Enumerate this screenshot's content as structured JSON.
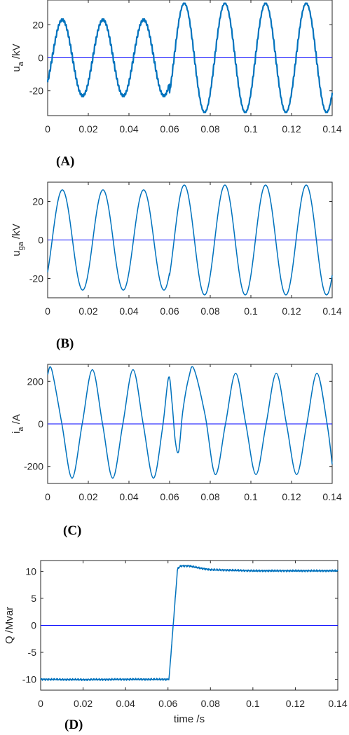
{
  "chart_data": [
    {
      "type": "line",
      "panel_label": "(A)",
      "ylabel": {
        "main": "u",
        "sub": "a",
        "rest": " /kV"
      },
      "xlabel": "",
      "xlim": [
        0,
        0.14
      ],
      "ylim": [
        -35,
        35
      ],
      "xticks": [
        "0",
        "0.02",
        "0.04",
        "0.06",
        "0.08",
        "0.1",
        "0.12",
        "0.14"
      ],
      "xtick_values": [
        0,
        0.02,
        0.04,
        0.06,
        0.08,
        0.1,
        0.12,
        0.14
      ],
      "yticks": [
        "20",
        "0",
        "-20"
      ],
      "ytick_values": [
        20,
        0,
        -20
      ],
      "zero_line": 0,
      "series": [
        {
          "frequency_hz": 50,
          "phase_deg": -40,
          "segments": [
            {
              "from": 0,
              "to": 0.06,
              "amplitude": 23
            },
            {
              "from": 0.06,
              "to": 0.14,
              "amplitude": 33
            }
          ],
          "ripple": true,
          "color": "#0072bd"
        }
      ],
      "zero_line_color": "#0000ff"
    },
    {
      "type": "line",
      "panel_label": "(B)",
      "ylabel": {
        "main": "u",
        "sub": "ga",
        "rest": " /kV"
      },
      "xlabel": "",
      "xlim": [
        0,
        0.14
      ],
      "ylim": [
        -30,
        30
      ],
      "xticks": [
        "0",
        "0.02",
        "0.04",
        "0.06",
        "0.08",
        "0.1",
        "0.12",
        "0.14"
      ],
      "xtick_values": [
        0,
        0.02,
        0.04,
        0.06,
        0.08,
        0.1,
        0.12,
        0.14
      ],
      "yticks": [
        "20",
        "0",
        "-20"
      ],
      "ytick_values": [
        20,
        0,
        -20
      ],
      "zero_line": 0,
      "series": [
        {
          "frequency_hz": 50,
          "phase_deg": -40,
          "segments": [
            {
              "from": 0,
              "to": 0.06,
              "amplitude": 26
            },
            {
              "from": 0.06,
              "to": 0.14,
              "amplitude": 28.5
            }
          ],
          "ripple": false,
          "color": "#0072bd"
        }
      ],
      "zero_line_color": "#0000ff"
    },
    {
      "type": "line",
      "panel_label": "(C)",
      "ylabel": {
        "main": "i",
        "sub": "a",
        "rest": " /A"
      },
      "xlabel": "",
      "xlim": [
        0,
        0.14
      ],
      "ylim": [
        -280,
        280
      ],
      "xticks": [
        "0",
        "0.02",
        "0.04",
        "0.06",
        "0.08",
        "0.1",
        "0.12",
        "0.14"
      ],
      "xtick_values": [
        0,
        0.02,
        0.04,
        0.06,
        0.08,
        0.1,
        0.12,
        0.14
      ],
      "yticks": [
        "200",
        "0",
        "-200"
      ],
      "ytick_values": [
        200,
        0,
        -200
      ],
      "zero_line": 0,
      "series": [
        {
          "points": [
            [
              0,
              232
            ],
            [
              0.002,
              255
            ],
            [
              0.007,
              0
            ],
            [
              0.012,
              -255
            ],
            [
              0.017,
              0
            ],
            [
              0.022,
              255
            ],
            [
              0.027,
              0
            ],
            [
              0.032,
              -255
            ],
            [
              0.037,
              0
            ],
            [
              0.042,
              255
            ],
            [
              0.047,
              0
            ],
            [
              0.052,
              -255
            ],
            [
              0.0565,
              -20
            ],
            [
              0.0595,
              218
            ],
            [
              0.0612,
              100
            ],
            [
              0.0628,
              -80
            ],
            [
              0.0645,
              -128
            ],
            [
              0.0665,
              60
            ],
            [
              0.0695,
              220
            ],
            [
              0.072,
              258
            ],
            [
              0.0775,
              40
            ],
            [
              0.0825,
              -238
            ],
            [
              0.0875,
              0
            ],
            [
              0.0925,
              238
            ],
            [
              0.0975,
              0
            ],
            [
              0.1025,
              -238
            ],
            [
              0.1075,
              0
            ],
            [
              0.1125,
              238
            ],
            [
              0.1175,
              0
            ],
            [
              0.1225,
              -238
            ],
            [
              0.1275,
              0
            ],
            [
              0.1325,
              238
            ],
            [
              0.1375,
              0
            ],
            [
              0.14,
              -190
            ]
          ],
          "color": "#0072bd"
        }
      ],
      "zero_line_color": "#0000ff"
    },
    {
      "type": "line",
      "panel_label": "(D)",
      "ylabel": {
        "main": "Q /Mvar",
        "sub": "",
        "rest": ""
      },
      "xlabel": "time /s",
      "xlim": [
        0,
        0.14
      ],
      "ylim": [
        -12,
        12
      ],
      "xticks": [
        "0",
        "0.02",
        "0.04",
        "0.06",
        "0.08",
        "0.1",
        "0.12",
        "0.14"
      ],
      "xtick_values": [
        0,
        0.02,
        0.04,
        0.06,
        0.08,
        0.1,
        0.12,
        0.14
      ],
      "yticks": [
        "10",
        "5",
        "0",
        "-5",
        "-10"
      ],
      "ytick_values": [
        10,
        5,
        0,
        -5,
        -10
      ],
      "zero_line": 0,
      "series": [
        {
          "points": [
            [
              0,
              -10
            ],
            [
              0.02,
              -10.05
            ],
            [
              0.04,
              -10
            ],
            [
              0.06,
              -10
            ],
            [
              0.0605,
              -9.9
            ],
            [
              0.0645,
              10.5
            ],
            [
              0.066,
              11
            ],
            [
              0.07,
              11
            ],
            [
              0.075,
              10.6
            ],
            [
              0.08,
              10.3
            ],
            [
              0.09,
              10.2
            ],
            [
              0.1,
              10.1
            ],
            [
              0.12,
              10.1
            ],
            [
              0.14,
              10.1
            ]
          ],
          "noise": true,
          "color": "#0072bd"
        }
      ],
      "zero_line_color": "#0000ff"
    }
  ]
}
